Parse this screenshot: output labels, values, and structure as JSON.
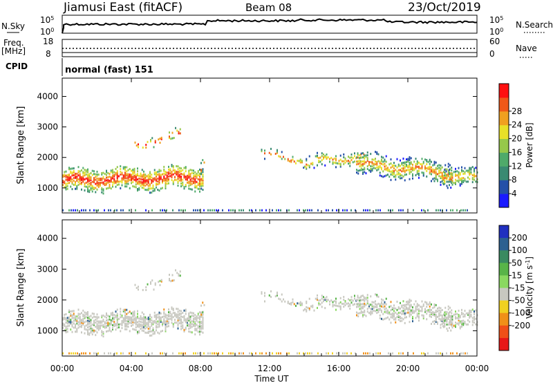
{
  "header": {
    "station": "Jiamusi East (fitACF)",
    "beam": "Beam 08",
    "date": "23/Oct/2019"
  },
  "noise_panel": {
    "left_label": "N.Sky",
    "right_label": "N.Search",
    "left_ticks": [
      "10^5",
      "10^0"
    ],
    "right_ticks": [
      "10^5",
      "10^0"
    ]
  },
  "freq_panel": {
    "left_label_1": "Freq.",
    "left_label_2": "[MHz]",
    "right_label": "Nave",
    "left_ticks": [
      "18",
      "8"
    ],
    "right_ticks": [
      "60",
      "0"
    ]
  },
  "cpid": {
    "label": "CPID",
    "mode": "normal (fast) 151"
  },
  "x_axis": {
    "label": "Time UT",
    "ticks": [
      "00:00",
      "04:00",
      "08:00",
      "12:00",
      "16:00",
      "20:00",
      "00:00"
    ]
  },
  "chart_data": [
    {
      "type": "heatmap",
      "name": "power",
      "ylabel": "Slant Range [km]",
      "yticks": [
        1000,
        2000,
        3000,
        4000
      ],
      "ylim": [
        180,
        4600
      ],
      "colorbar": {
        "label": "Power [dB]",
        "ticks": [
          4,
          8,
          12,
          16,
          20,
          24,
          28
        ],
        "colors": [
          "#1a1aff",
          "#2450a8",
          "#3a8a72",
          "#4faa6a",
          "#96c84a",
          "#e8e028",
          "#f0a020",
          "#f05818",
          "#ff1010"
        ]
      }
    },
    {
      "type": "heatmap",
      "name": "velocity",
      "ylabel": "Slant Range [km]",
      "yticks": [
        1000,
        2000,
        3000,
        4000
      ],
      "ylim": [
        180,
        4600
      ],
      "colorbar": {
        "label": "Velocity [m s^-1]",
        "ticks": [
          200,
          100,
          50,
          15,
          -15,
          -50,
          -100,
          -200
        ],
        "colors": [
          "#2030c0",
          "#2c6090",
          "#3a8a60",
          "#58b448",
          "#8ad860",
          "#c8c8c0",
          "#f0d020",
          "#f09018",
          "#f05018",
          "#e81818"
        ]
      }
    }
  ]
}
